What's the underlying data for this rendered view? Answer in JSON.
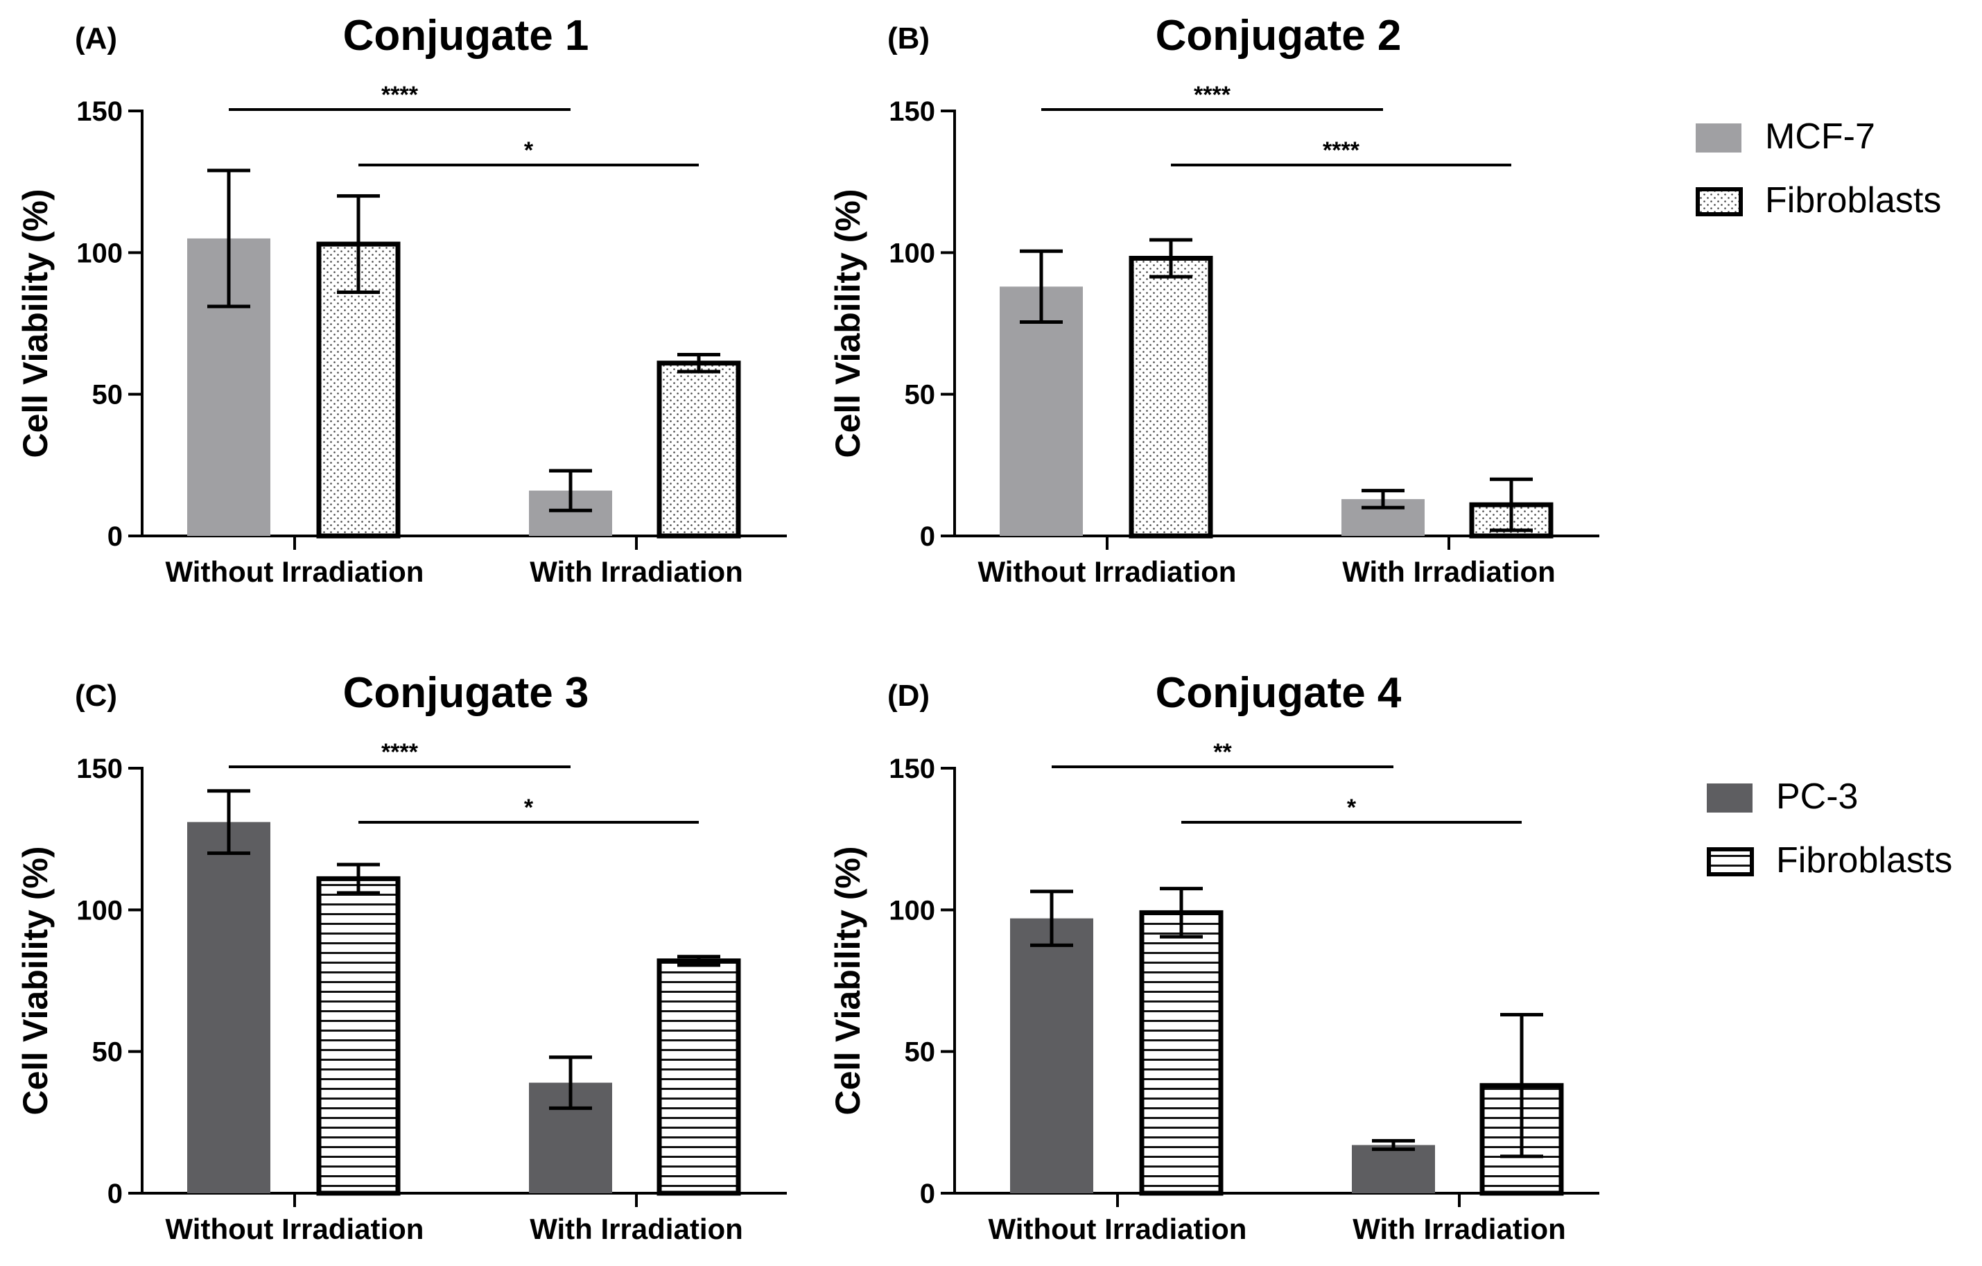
{
  "colors": {
    "mcf7": "#a0a0a3",
    "pc3": "#5e5e61",
    "fibroblast_fill": "#ffffff",
    "outline": "#000000"
  },
  "legends": [
    {
      "items": [
        {
          "label": "MCF-7",
          "pattern": "solid-light"
        },
        {
          "label": "Fibroblasts",
          "pattern": "dots"
        }
      ]
    },
    {
      "items": [
        {
          "label": "PC-3",
          "pattern": "solid-dark"
        },
        {
          "label": "Fibroblasts",
          "pattern": "hlines"
        }
      ]
    }
  ],
  "chart_data": [
    {
      "type": "bar",
      "panel_label": "(A)",
      "title": "Conjugate 1",
      "xlabel": "",
      "ylabel": "Cell Viability (%)",
      "ylim": [
        0,
        150
      ],
      "yticks": [
        "0",
        "50",
        "100",
        "150"
      ],
      "categories": [
        "Without Irradiation",
        "With Irradiation"
      ],
      "series": [
        {
          "name": "MCF-7",
          "pattern": "solid-light",
          "values": [
            105,
            16
          ],
          "errors": [
            24,
            7
          ]
        },
        {
          "name": "Fibroblasts",
          "pattern": "dots",
          "values": [
            103,
            61
          ],
          "errors": [
            17,
            3
          ]
        }
      ],
      "significance": [
        {
          "label": "****",
          "from_bar": 0,
          "to_bar": 2
        },
        {
          "label": "*",
          "from_bar": 1,
          "to_bar": 3
        }
      ]
    },
    {
      "type": "bar",
      "panel_label": "(B)",
      "title": "Conjugate 2",
      "xlabel": "",
      "ylabel": "Cell Viability (%)",
      "ylim": [
        0,
        150
      ],
      "yticks": [
        "0",
        "50",
        "100",
        "150"
      ],
      "categories": [
        "Without Irradiation",
        "With Irradiation"
      ],
      "series": [
        {
          "name": "MCF-7",
          "pattern": "solid-light",
          "values": [
            88,
            13
          ],
          "errors": [
            12.5,
            3
          ]
        },
        {
          "name": "Fibroblasts",
          "pattern": "dots",
          "values": [
            98,
            11
          ],
          "errors": [
            6.5,
            9
          ]
        }
      ],
      "significance": [
        {
          "label": "****",
          "from_bar": 0,
          "to_bar": 2
        },
        {
          "label": "****",
          "from_bar": 1,
          "to_bar": 3
        }
      ]
    },
    {
      "type": "bar",
      "panel_label": "(C)",
      "title": "Conjugate 3",
      "xlabel": "",
      "ylabel": "Cell Viability (%)",
      "ylim": [
        0,
        150
      ],
      "yticks": [
        "0",
        "50",
        "100",
        "150"
      ],
      "categories": [
        "Without Irradiation",
        "With Irradiation"
      ],
      "series": [
        {
          "name": "PC-3",
          "pattern": "solid-dark",
          "values": [
            131,
            39
          ],
          "errors": [
            11,
            9
          ]
        },
        {
          "name": "Fibroblasts",
          "pattern": "hlines",
          "values": [
            111,
            82
          ],
          "errors": [
            5,
            1.5
          ]
        }
      ],
      "significance": [
        {
          "label": "****",
          "from_bar": 0,
          "to_bar": 2
        },
        {
          "label": "*",
          "from_bar": 1,
          "to_bar": 3
        }
      ]
    },
    {
      "type": "bar",
      "panel_label": "(D)",
      "title": "Conjugate 4",
      "xlabel": "",
      "ylabel": "Cell Viability (%)",
      "ylim": [
        0,
        150
      ],
      "yticks": [
        "0",
        "50",
        "100",
        "150"
      ],
      "categories": [
        "Without Irradiation",
        "With Irradiation"
      ],
      "series": [
        {
          "name": "PC-3",
          "pattern": "solid-dark",
          "values": [
            97,
            17
          ],
          "errors": [
            9.5,
            1.5
          ]
        },
        {
          "name": "Fibroblasts",
          "pattern": "hlines",
          "values": [
            99,
            38
          ],
          "errors": [
            8.5,
            25
          ]
        }
      ],
      "significance": [
        {
          "label": "**",
          "from_bar": 0,
          "to_bar": 2
        },
        {
          "label": "*",
          "from_bar": 1,
          "to_bar": 3
        }
      ]
    }
  ]
}
